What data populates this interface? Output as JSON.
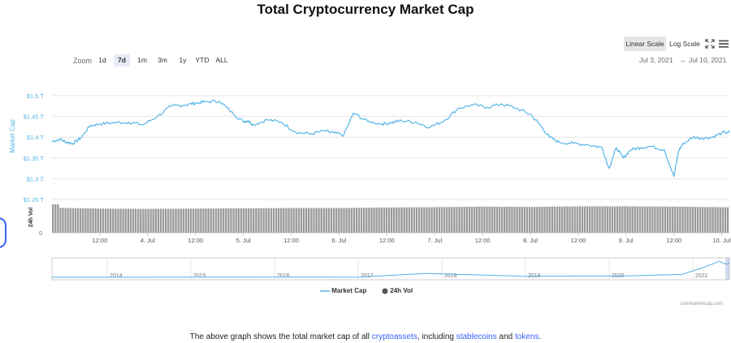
{
  "page": {
    "title": "Total Cryptocurrency Market Cap"
  },
  "toolbar": {
    "zoom_label": "Zoom",
    "zoom_buttons": [
      "1d",
      "7d",
      "1m",
      "3m",
      "1y",
      "YTD",
      "ALL"
    ],
    "zoom_active": "7d",
    "linear_scale": "Linear Scale",
    "log_scale": "Log Scale",
    "range_from": "Jul 3, 2021",
    "range_arrow": "→",
    "range_to": "Jul 10, 2021"
  },
  "legend": {
    "market_cap": "Market Cap",
    "vol": "24h Vol"
  },
  "credit": "coinmarketcap.com",
  "footer": {
    "prefix": "The above graph shows the total market cap of all ",
    "link1": "cryptoassets",
    "mid1": ", including ",
    "link2": "stablecoins",
    "mid2": " and ",
    "link3": "tokens",
    "suffix": "."
  },
  "colors": {
    "line": "#55b4e6",
    "volume": "#9a9a9a",
    "accent": "#3861fb"
  },
  "icons": [
    "fullscreen-icon",
    "menu-icon"
  ],
  "chart_data": {
    "type": "line",
    "title": "Total Cryptocurrency Market Cap",
    "ylabel": "Market Cap",
    "ylim": [
      1.25,
      1.5
    ],
    "y_ticks": [
      "$1.25 T",
      "$1.3 T",
      "$1.35 T",
      "$1.4 T",
      "$1.45 T",
      "$1.5 T"
    ],
    "y_tick_values": [
      1.25,
      1.3,
      1.35,
      1.4,
      1.45,
      1.5
    ],
    "x_ticks": [
      "12:00",
      "4. Jul",
      "12:00",
      "5. Jul",
      "12:00",
      "6. Jul",
      "12:00",
      "7. Jul",
      "12:00",
      "8. Jul",
      "12:00",
      "9. Jul",
      "12:00",
      "10. Jul"
    ],
    "x_tick_days": [
      0.5,
      1,
      1.5,
      2,
      2.5,
      3,
      3.5,
      4,
      4.5,
      5,
      5.5,
      6,
      6.5,
      7
    ],
    "x_start": "Jul 3, 2021",
    "series": [
      {
        "name": "Market Cap",
        "unit": "trillion USD",
        "x": [
          0,
          0.08,
          0.15,
          0.22,
          0.3,
          0.4,
          0.5,
          0.65,
          0.8,
          0.95,
          1.1,
          1.25,
          1.4,
          1.5,
          1.6,
          1.75,
          1.9,
          2.0,
          2.05,
          2.1,
          2.25,
          2.4,
          2.55,
          2.7,
          2.85,
          2.95,
          3.05,
          3.15,
          3.3,
          3.45,
          3.55,
          3.65,
          3.8,
          3.95,
          4.1,
          4.25,
          4.4,
          4.55,
          4.7,
          4.85,
          5.0,
          5.1,
          5.2,
          5.3,
          5.45,
          5.6,
          5.75,
          5.82,
          5.9,
          5.97,
          6.05,
          6.15,
          6.25,
          6.4,
          6.5,
          6.55,
          6.6,
          6.7,
          6.8,
          6.9,
          7.0,
          7.08
        ],
        "values": [
          1.39,
          1.395,
          1.388,
          1.385,
          1.398,
          1.428,
          1.432,
          1.435,
          1.436,
          1.43,
          1.45,
          1.475,
          1.478,
          1.482,
          1.485,
          1.487,
          1.455,
          1.438,
          1.44,
          1.43,
          1.442,
          1.436,
          1.412,
          1.408,
          1.415,
          1.41,
          1.405,
          1.458,
          1.438,
          1.432,
          1.435,
          1.44,
          1.436,
          1.424,
          1.44,
          1.47,
          1.478,
          1.472,
          1.48,
          1.47,
          1.455,
          1.43,
          1.4,
          1.388,
          1.385,
          1.382,
          1.375,
          1.325,
          1.375,
          1.35,
          1.37,
          1.375,
          1.378,
          1.37,
          1.305,
          1.368,
          1.385,
          1.4,
          1.398,
          1.4,
          1.41,
          1.412
        ]
      },
      {
        "name": "24h Vol",
        "unit": "relative level (no printed scale)",
        "x": [
          0,
          0.5,
          1,
          1.5,
          2,
          2.5,
          3,
          3.5,
          4,
          4.5,
          5,
          5.5,
          6,
          6.5,
          7,
          7.08
        ],
        "values": [
          0.88,
          0.85,
          0.84,
          0.85,
          0.86,
          0.87,
          0.87,
          0.89,
          0.9,
          0.92,
          0.91,
          0.93,
          0.93,
          0.92,
          0.9,
          0.9
        ]
      }
    ],
    "navigator": {
      "years": [
        "2014",
        "2015",
        "2016",
        "2017",
        "2018",
        "2019",
        "2020",
        "2021"
      ]
    },
    "grid": true,
    "legend_position": "bottom-center"
  }
}
